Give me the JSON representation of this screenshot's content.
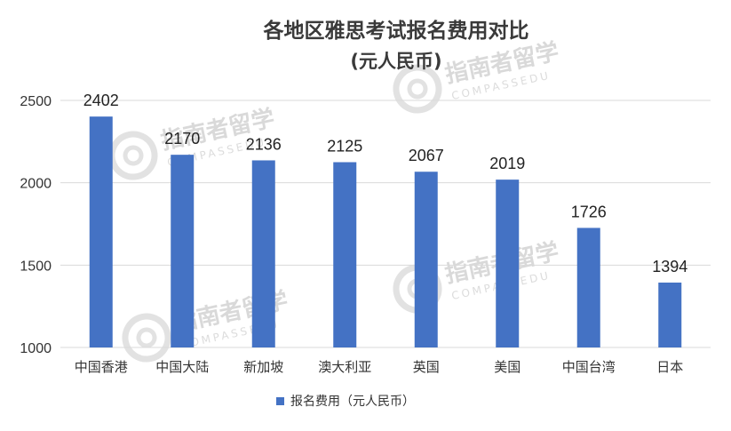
{
  "chart_data": {
    "type": "bar",
    "title": "各地区雅思考试报名费用对比",
    "subtitle": "(元人民币)",
    "categories": [
      "中国香港",
      "中国大陆",
      "新加坡",
      "澳大利亚",
      "英国",
      "美国",
      "中国台湾",
      "日本"
    ],
    "series": [
      {
        "name": "报名费用（元人民币）",
        "values": [
          2402,
          2170,
          2136,
          2125,
          2067,
          2019,
          1726,
          1394
        ],
        "color": "#4472c4"
      }
    ],
    "ylim": [
      1000,
      2500
    ],
    "yticks": [
      "1000",
      "1500",
      "2000",
      "2500"
    ],
    "grid": true,
    "legend_position": "bottom",
    "bar_color": "#4472c4",
    "grid_color": "#d9d9d9"
  },
  "watermark": {
    "text": "指南者留学",
    "subtext": "COMPASSEDU"
  }
}
